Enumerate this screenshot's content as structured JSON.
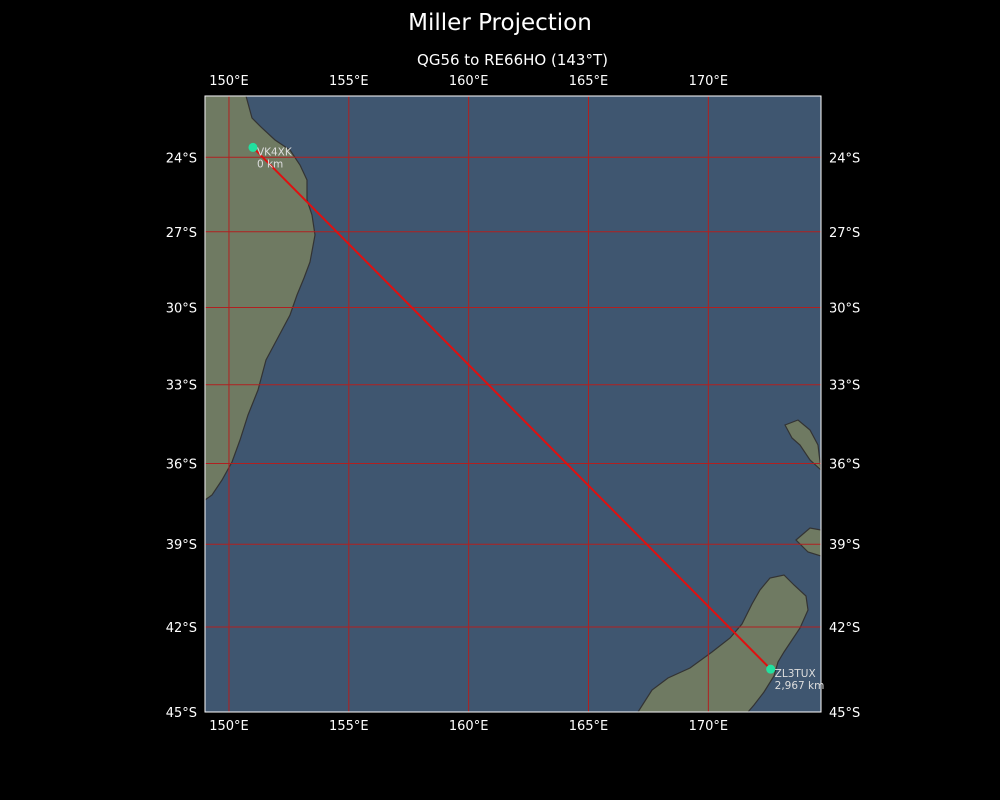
{
  "title": "Miller Projection",
  "subtitle": "QG56 to RE66HO (143°T)",
  "colors": {
    "background": "#000000",
    "ocean": "#3f5670",
    "land": "#6f7a62",
    "grid": "#b02020",
    "path": "#e01010",
    "station": "#22e0a0",
    "coast": "#333333"
  },
  "map_data": {
    "projection": "Miller",
    "lon_range": [
      149,
      174.7
    ],
    "lat_range": [
      -45,
      -21.5
    ],
    "lon_ticks": [
      150,
      155,
      160,
      165,
      170
    ],
    "lon_tick_labels": [
      "150°E",
      "155°E",
      "160°E",
      "165°E",
      "170°E"
    ],
    "lat_ticks": [
      -24,
      -27,
      -30,
      -33,
      -36,
      -39,
      -42,
      -45
    ],
    "lat_tick_labels": [
      "24°S",
      "27°S",
      "30°S",
      "33°S",
      "36°S",
      "39°S",
      "42°S",
      "45°S"
    ],
    "stations": [
      {
        "call": "VK4XK",
        "dist": "0 km",
        "lon": 151.0,
        "lat": -23.6
      },
      {
        "call": "ZL3TUX",
        "dist": "2,967 km",
        "lon": 172.6,
        "lat": -43.5
      }
    ],
    "path": [
      [
        151.0,
        -23.6
      ],
      [
        172.6,
        -43.5
      ]
    ]
  }
}
